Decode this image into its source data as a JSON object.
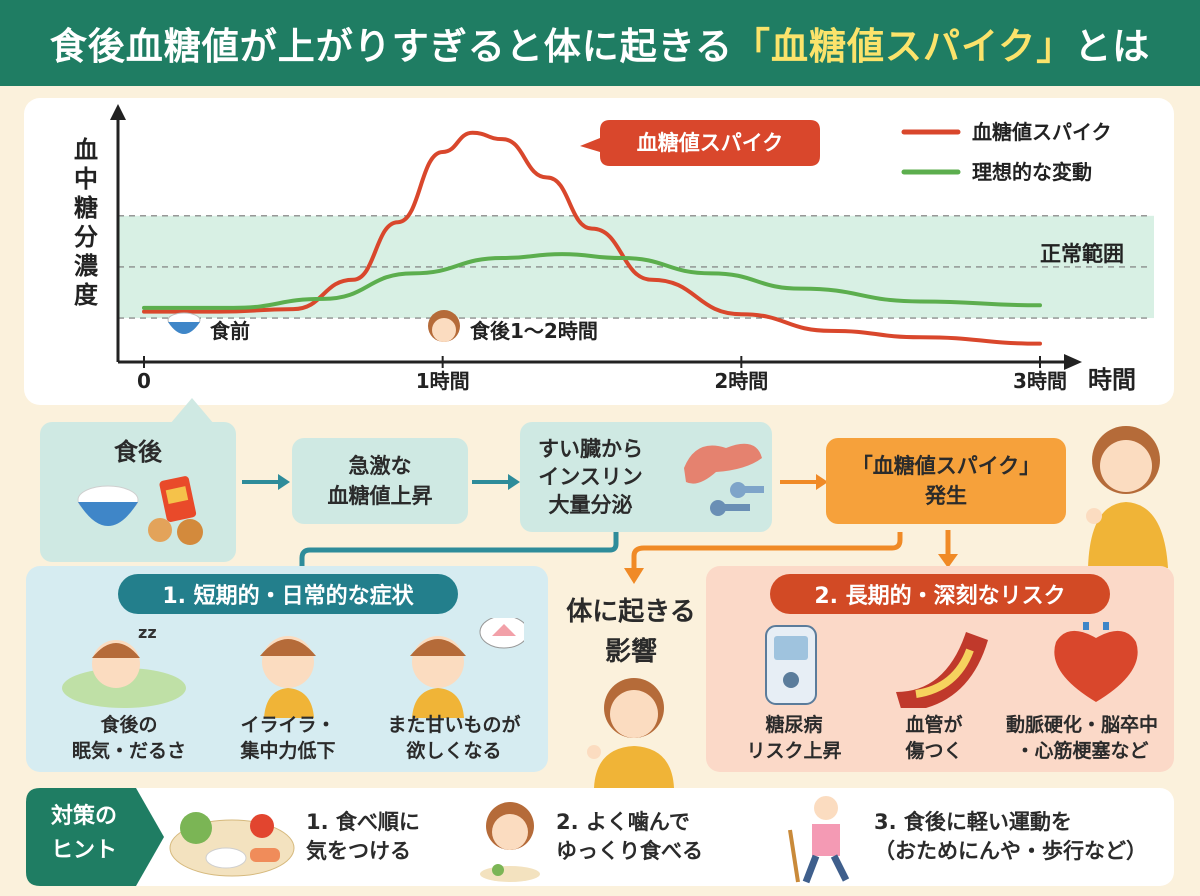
{
  "title": {
    "part1": "食後血糖値が上がりすぎると体に起きる",
    "highlight": "「血糖値スパイク」",
    "part2": "とは"
  },
  "chart_data": {
    "type": "line",
    "ylabel": "血中糖分濃度",
    "xlabel": "時間",
    "x_ticks": [
      "0",
      "1時間",
      "2時間",
      "3時間"
    ],
    "xlim": [
      0,
      3
    ],
    "normal_range_label": "正常範囲",
    "spike_callout": "血糖値スパイク",
    "markers": {
      "before_meal": "食前",
      "after_meal": "食後1〜2時間"
    },
    "legend": [
      "血糖値スパイク",
      "理想的な変動"
    ],
    "series": [
      {
        "name": "血糖値スパイク",
        "color": "#d9472c",
        "x": [
          0,
          0.25,
          0.5,
          0.7,
          0.85,
          1.0,
          1.1,
          1.2,
          1.35,
          1.5,
          1.7,
          2.0,
          2.3,
          2.6,
          3.0
        ],
        "y": [
          30,
          30,
          32,
          55,
          100,
          155,
          170,
          165,
          135,
          95,
          55,
          28,
          15,
          10,
          5
        ]
      },
      {
        "name": "理想的な変動",
        "color": "#5cae4e",
        "x": [
          0,
          0.3,
          0.6,
          0.9,
          1.2,
          1.4,
          1.6,
          1.9,
          2.2,
          2.6,
          3.0
        ],
        "y": [
          33,
          33,
          40,
          60,
          72,
          75,
          72,
          60,
          48,
          38,
          35
        ]
      }
    ],
    "normal_band": [
      25,
      105
    ],
    "ylim": [
      0,
      180
    ]
  },
  "flow": {
    "after_meal": "食後",
    "rise": "急激な\n血糖値上昇",
    "insulin": "すい臓から\nインスリン\n大量分泌",
    "spike": "「血糖値スパイク」\n発生"
  },
  "center": "体に起きる\n影響",
  "short_term": {
    "title": "1. 短期的・日常的な症状",
    "items": [
      "食後の\n眠気・だるさ",
      "イライラ・\n集中力低下",
      "また甘いものが\n欲しくなる"
    ]
  },
  "long_term": {
    "title": "2. 長期的・深刻なリスク",
    "items": [
      "糖尿病\nリスク上昇",
      "血管が\n傷つく",
      "動脈硬化・脳卒中\n・心筋梗塞など"
    ]
  },
  "tips": {
    "label": "対策の\nヒント",
    "items": [
      "1. 食べ順に\n気をつける",
      "2. よく噛んで\n  ゆっくり食べる",
      "3. 食後に軽い運動を\n（おためにんや・歩行など）"
    ]
  },
  "colors": {
    "header": "#1f7d63",
    "teal_box": "#cfe9e3",
    "orange": "#f6a13b",
    "short_bg": "#d6ecf1",
    "long_bg": "#fbd9c8",
    "short_pill": "#237f8c",
    "long_pill": "#d24a25",
    "band": "#d8f0e4"
  }
}
